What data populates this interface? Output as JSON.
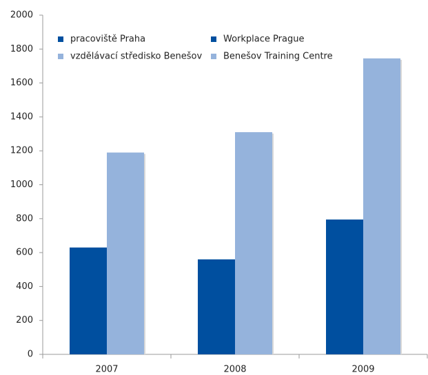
{
  "chart_data": {
    "type": "bar",
    "categories": [
      "2007",
      "2008",
      "2009"
    ],
    "series": [
      {
        "name": "pracoviště Praha",
        "name_en": "Workplace Prague",
        "color": "#004f9f",
        "values": [
          630,
          560,
          795
        ]
      },
      {
        "name": "vzdělávací středisko Benešov",
        "name_en": "Benešov Training Centre",
        "color": "#95b3dc",
        "values": [
          1190,
          1310,
          1745
        ]
      }
    ],
    "ylim": [
      0,
      2000
    ],
    "yticks": [
      0,
      200,
      400,
      600,
      800,
      1000,
      1200,
      1400,
      1600,
      1800,
      2000
    ],
    "grid": false,
    "legend": "top-left"
  }
}
